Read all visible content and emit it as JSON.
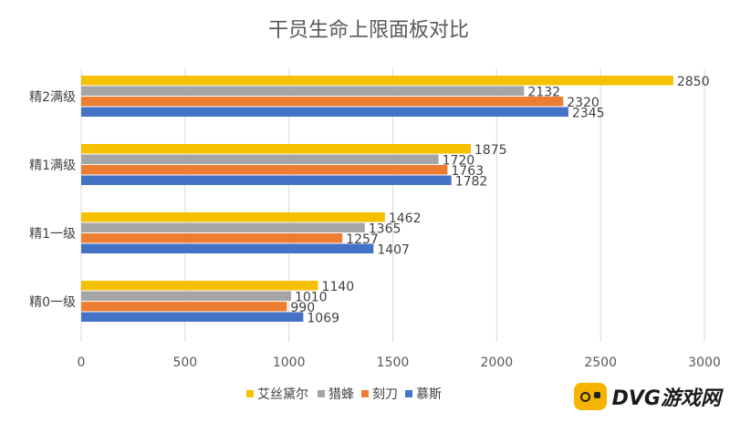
{
  "chart_data": {
    "type": "bar",
    "orientation": "horizontal",
    "title": "干员生命上限面板对比",
    "categories": [
      "精2满级",
      "精1满级",
      "精1一级",
      "精0一级"
    ],
    "series": [
      {
        "name": "艾丝黛尔",
        "color": "#f5c000",
        "values": [
          2850,
          1875,
          1462,
          1140
        ]
      },
      {
        "name": "猎蜂",
        "color": "#a5a5a5",
        "values": [
          2132,
          1720,
          1365,
          1010
        ]
      },
      {
        "name": "刻刀",
        "color": "#ed7d31",
        "values": [
          2320,
          1763,
          1257,
          990
        ]
      },
      {
        "name": "慕斯",
        "color": "#4472c4",
        "values": [
          2345,
          1782,
          1407,
          1069
        ]
      }
    ],
    "xlim": [
      0,
      3000
    ],
    "xticks": [
      "0",
      "500",
      "1000",
      "1500",
      "2000",
      "2500",
      "3000"
    ],
    "grid": true,
    "legend_position": "bottom"
  },
  "watermark": {
    "icon": "gamepad-icon",
    "text": "DVG游戏网"
  }
}
